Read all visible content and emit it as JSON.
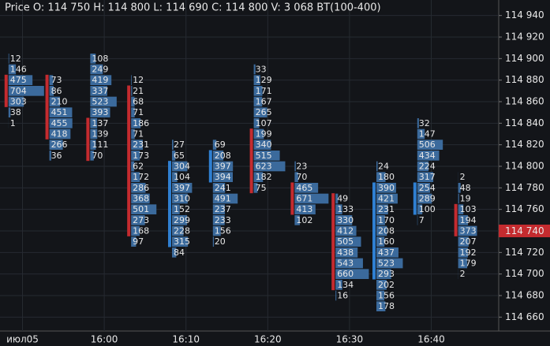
{
  "chart_data": {
    "type": "footprint",
    "title": "Price O: 114 750  H: 114 800  L: 114 690  C: 114 800  V: 3 068  BT(100-400)",
    "ylim": [
      114650,
      114950
    ],
    "yticks": [
      {
        "value": 114660,
        "label": "114 660"
      },
      {
        "value": 114680,
        "label": "114 680"
      },
      {
        "value": 114700,
        "label": "114 700"
      },
      {
        "value": 114720,
        "label": "114 720"
      },
      {
        "value": 114740,
        "label": "114 740"
      },
      {
        "value": 114760,
        "label": "114 760"
      },
      {
        "value": 114780,
        "label": "114 780"
      },
      {
        "value": 114800,
        "label": "114 800"
      },
      {
        "value": 114820,
        "label": "114 820"
      },
      {
        "value": 114840,
        "label": "114 840"
      },
      {
        "value": 114860,
        "label": "114 860"
      },
      {
        "value": 114880,
        "label": "114 880"
      },
      {
        "value": 114900,
        "label": "114 900"
      },
      {
        "value": 114920,
        "label": "114 920"
      },
      {
        "value": 114940,
        "label": "114 940"
      }
    ],
    "xlim": [
      -0.15,
      12.05
    ],
    "xticks": [
      {
        "value": 0.4,
        "label": "июл05"
      },
      {
        "value": 2.4,
        "label": "16:00"
      },
      {
        "value": 4.4,
        "label": "16:10"
      },
      {
        "value": 6.4,
        "label": "16:20"
      },
      {
        "value": 8.4,
        "label": "16:30"
      },
      {
        "value": 10.4,
        "label": "16:40"
      }
    ],
    "grid": true,
    "price_step": 10,
    "volume_color": "#3b6a9c",
    "up_color": "#2f7fd1",
    "down_color": "#c42b2f",
    "last_price": {
      "value": 114740,
      "label": "114 740"
    },
    "candles": [
      {
        "top": 114900,
        "open": 114880,
        "close": 114860,
        "volumes": [
          12,
          146,
          475,
          704,
          303,
          38,
          1
        ]
      },
      {
        "top": 114880,
        "open": 114880,
        "close": 114830,
        "volumes": [
          73,
          86,
          210,
          451,
          455,
          418,
          266,
          36
        ]
      },
      {
        "top": 114900,
        "open": 114840,
        "close": 114810,
        "volumes": [
          108,
          249,
          419,
          337,
          523,
          393,
          137,
          139,
          111,
          70
        ]
      },
      {
        "top": 114880,
        "open": 114870,
        "close": 114740,
        "volumes": [
          12,
          21,
          68,
          71,
          186,
          71,
          231,
          173,
          62,
          172,
          286,
          368,
          501,
          273,
          168,
          97
        ]
      },
      {
        "top": 114820,
        "open": 114730,
        "close": 114800,
        "volumes": [
          27,
          65,
          304,
          104,
          397,
          310,
          152,
          299,
          228,
          315,
          84
        ]
      },
      {
        "top": 114820,
        "open": 114790,
        "close": 114810,
        "volumes": [
          69,
          208,
          397,
          394,
          241,
          491,
          237,
          233,
          156,
          20
        ]
      },
      {
        "top": 114890,
        "open": 114830,
        "close": 114780,
        "volumes": [
          33,
          129,
          171,
          167,
          265,
          107,
          199,
          340,
          515,
          623,
          182,
          75
        ]
      },
      {
        "top": 114800,
        "open": 114780,
        "close": 114760,
        "volumes": [
          23,
          70,
          465,
          671,
          413,
          102
        ]
      },
      {
        "top": 114770,
        "open": 114770,
        "close": 114690,
        "volumes": [
          49,
          133,
          330,
          412,
          505,
          438,
          543,
          660,
          134,
          16
        ]
      },
      {
        "top": 114800,
        "open": 114700,
        "close": 114780,
        "volumes": [
          24,
          180,
          390,
          421,
          231,
          170,
          208,
          160,
          437,
          523,
          293,
          202,
          156,
          178
        ]
      },
      {
        "top": 114840,
        "open": 114760,
        "close": 114780,
        "volumes": [
          32,
          147,
          506,
          434,
          224,
          317,
          254,
          289,
          100,
          7
        ]
      },
      {
        "top": 114790,
        "open": 114760,
        "close": 114740,
        "volumes": [
          2,
          48,
          19,
          103,
          194,
          373,
          207,
          192,
          179,
          2
        ]
      }
    ]
  }
}
